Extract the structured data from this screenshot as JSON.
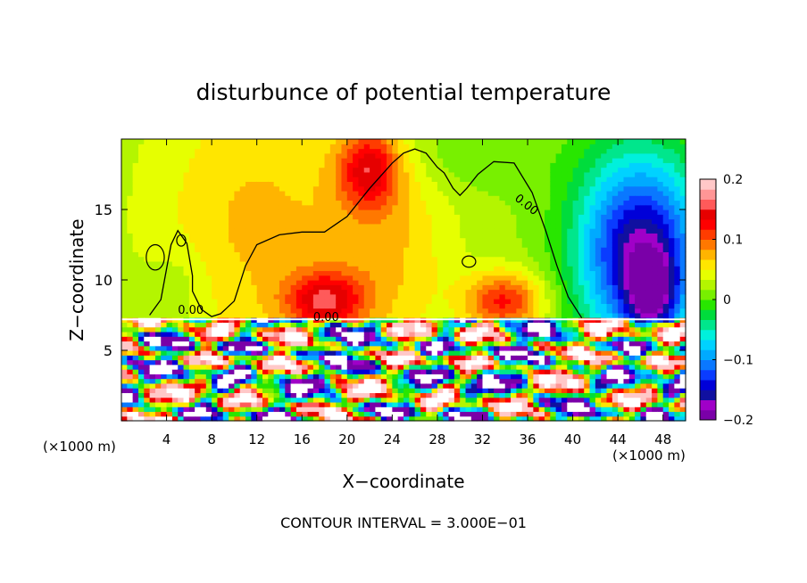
{
  "chart_data": {
    "type": "heatmap",
    "title": "disturbunce of potential temperature",
    "xlabel": "X−coordinate",
    "ylabel": "Z−coordinate",
    "x_unit_label_left": "(×1000 m)",
    "x_unit_label_right": "(×1000 m)",
    "xlim": [
      0,
      50
    ],
    "ylim": [
      0,
      20
    ],
    "xticks": [
      4,
      8,
      12,
      16,
      20,
      24,
      28,
      32,
      36,
      40,
      44,
      48
    ],
    "yticks": [
      5,
      10,
      15
    ],
    "colorbar": {
      "range": [
        -0.2,
        0.2
      ],
      "ticks": [
        0.2,
        0.1,
        0,
        -0.1,
        -0.2
      ],
      "tick_labels": [
        "0.2",
        "0.1",
        "0",
        "−0.1",
        "−0.2"
      ],
      "colors": [
        "#7a00a8",
        "#a000c8",
        "#1010a0",
        "#0000d8",
        "#0a3cff",
        "#0a78ff",
        "#00aaff",
        "#00d2ff",
        "#00f0dc",
        "#00e68c",
        "#00dc3c",
        "#28e600",
        "#78f000",
        "#b4f500",
        "#e6ff00",
        "#ffe600",
        "#ffb400",
        "#ff7800",
        "#ff3c00",
        "#ff0000",
        "#e60000",
        "#ff5a5a",
        "#ff9696",
        "#ffc8c8"
      ]
    },
    "contour_labels": [
      {
        "text": "0.00",
        "x": 34.8,
        "z": 15.7
      },
      {
        "text": "0.00",
        "x": 5.0,
        "z": 7.6
      },
      {
        "text": "0.00",
        "x": 17.0,
        "z": 7.1
      }
    ],
    "field": {
      "base": 0.02,
      "upper_blobs": [
        {
          "x": 12,
          "z": 14,
          "sx": 7,
          "sz": 8,
          "a": 0.05
        },
        {
          "x": 24,
          "z": 12,
          "sx": 4,
          "sz": 6,
          "a": 0.04
        },
        {
          "x": 18,
          "z": 8.5,
          "sx": 2.5,
          "sz": 1.5,
          "a": 0.1
        },
        {
          "x": 34,
          "z": 8.5,
          "sx": 2.5,
          "sz": 1.5,
          "a": 0.1
        },
        {
          "x": 46,
          "z": 12,
          "sx": 4,
          "sz": 5,
          "a": -0.19
        },
        {
          "x": 47,
          "z": 9,
          "sx": 1.5,
          "sz": 2,
          "a": -0.1
        },
        {
          "x": 22,
          "z": 18,
          "sx": 2,
          "sz": 2,
          "a": 0.1
        },
        {
          "x": 5,
          "z": 9.5,
          "sx": 2,
          "sz": 2,
          "a": -0.02
        },
        {
          "x": 30,
          "z": 19,
          "sx": 6,
          "sz": 2,
          "a": -0.02
        }
      ]
    }
  },
  "footer": {
    "contour_interval": "CONTOUR INTERVAL = 3.000E−01"
  }
}
